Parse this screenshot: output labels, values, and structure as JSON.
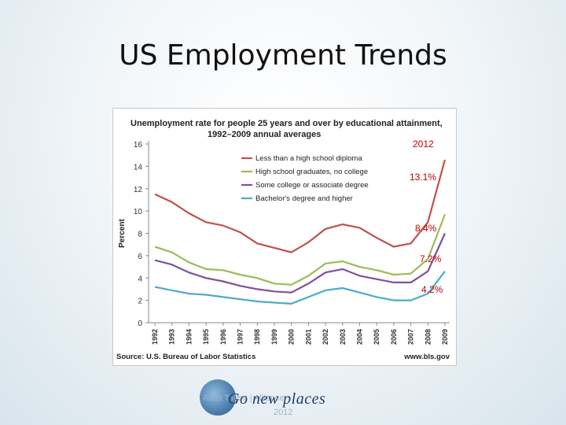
{
  "slide": {
    "title": "US Employment Trends"
  },
  "footer": {
    "brand": "Go new places",
    "caption": "Atlas Talent | Alliance",
    "year": "2012"
  },
  "annotations": {
    "year": "2012",
    "values": [
      "13.1%",
      "8.4%",
      "7.2%",
      "4.2%"
    ]
  },
  "chart_data": {
    "type": "line",
    "title": "Unemployment rate for people 25 years and over by educational attainment, 1992–2009 annual averages",
    "ylabel": "Percent",
    "xlabel": "",
    "source": "Source: U.S. Bureau of Labor Statistics",
    "website": "www.bls.gov",
    "ylim": [
      0,
      16
    ],
    "yticks": [
      0,
      2,
      4,
      6,
      8,
      10,
      12,
      14,
      16
    ],
    "legend_position": "top-right",
    "grid": false,
    "x": [
      "1992",
      "1993",
      "1994",
      "1995",
      "1996",
      "1997",
      "1998",
      "1999",
      "2000",
      "2001",
      "2002",
      "2003",
      "2004",
      "2005",
      "2006",
      "2007",
      "2008",
      "2009"
    ],
    "series": [
      {
        "name": "Less than a high school diploma",
        "color": "#c0504d",
        "values": [
          11.5,
          10.8,
          9.8,
          9.0,
          8.7,
          8.1,
          7.1,
          6.7,
          6.3,
          7.2,
          8.4,
          8.8,
          8.5,
          7.6,
          6.8,
          7.1,
          9.0,
          14.6
        ]
      },
      {
        "name": "High school graduates, no college",
        "color": "#9bbb59",
        "values": [
          6.8,
          6.3,
          5.4,
          4.8,
          4.7,
          4.3,
          4.0,
          3.5,
          3.4,
          4.2,
          5.3,
          5.5,
          5.0,
          4.7,
          4.3,
          4.4,
          5.7,
          9.7
        ]
      },
      {
        "name": "Some college or associate degree",
        "color": "#7f4fa3",
        "values": [
          5.6,
          5.2,
          4.5,
          4.0,
          3.7,
          3.3,
          3.0,
          2.8,
          2.7,
          3.5,
          4.5,
          4.8,
          4.2,
          3.9,
          3.6,
          3.6,
          4.6,
          8.0
        ]
      },
      {
        "name": "Bachelor's degree and higher",
        "color": "#4bacc6",
        "values": [
          3.2,
          2.9,
          2.6,
          2.5,
          2.3,
          2.1,
          1.9,
          1.8,
          1.7,
          2.3,
          2.9,
          3.1,
          2.7,
          2.3,
          2.0,
          2.0,
          2.6,
          4.6
        ]
      }
    ]
  }
}
